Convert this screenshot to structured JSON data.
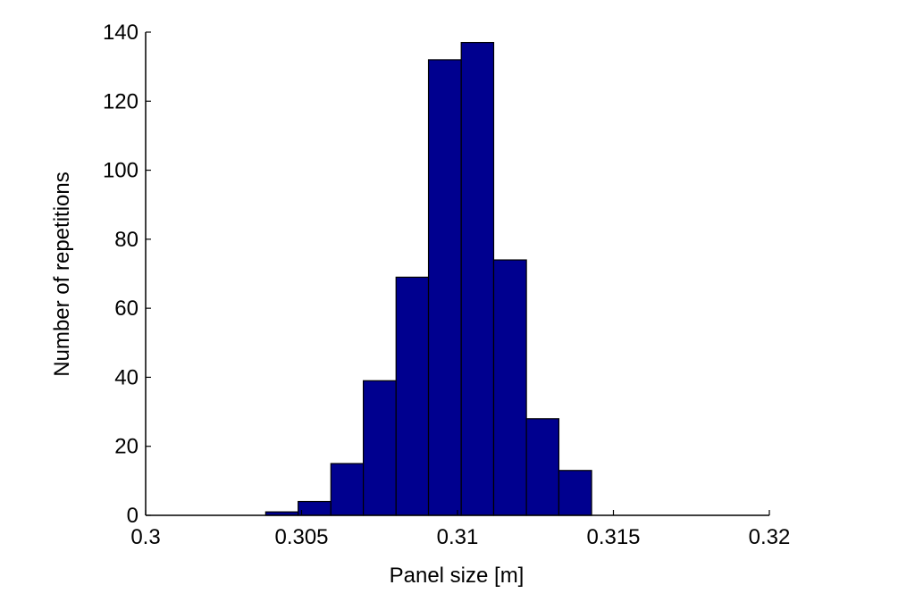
{
  "chart_data": {
    "type": "bar",
    "title": "",
    "xlabel": "Panel size [m]",
    "ylabel": "Number of repetitions",
    "xlim": [
      0.3,
      0.32
    ],
    "ylim": [
      0,
      140
    ],
    "xticks": [
      0.3,
      0.305,
      0.31,
      0.315,
      0.32
    ],
    "xtick_labels": [
      "0.3",
      "0.305",
      "0.31",
      "0.315",
      "0.32"
    ],
    "yticks": [
      0,
      20,
      40,
      60,
      80,
      100,
      120,
      140
    ],
    "ytick_labels": [
      "0",
      "20",
      "40",
      "60",
      "80",
      "100",
      "120",
      "140"
    ],
    "grid": false,
    "bar_color": "#00008F",
    "bin_edges": [
      0.30385,
      0.30489,
      0.30594,
      0.30698,
      0.30803,
      0.30907,
      0.31012,
      0.31116,
      0.31221,
      0.31325,
      0.3143
    ],
    "values": [
      1,
      4,
      15,
      39,
      69,
      132,
      137,
      74,
      28,
      13
    ]
  }
}
